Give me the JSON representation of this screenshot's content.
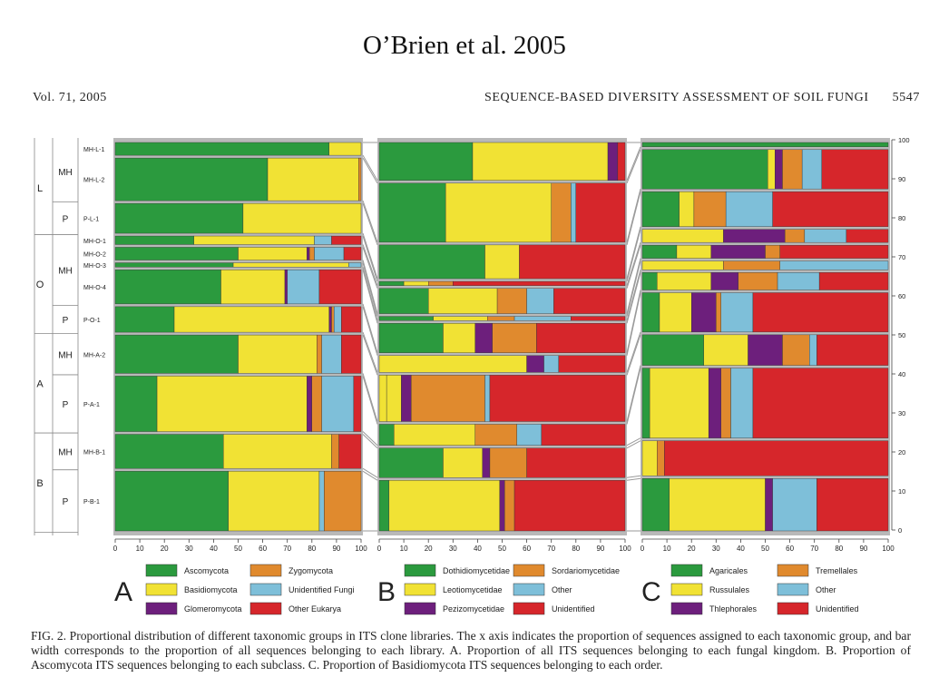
{
  "header": {
    "citation": "O’Brien et al. 2005",
    "volume": "Vol. 71, 2005",
    "running_title": "SEQUENCE-BASED DIVERSITY ASSESSMENT OF SOIL FUNGI",
    "page_number": "5547"
  },
  "caption": "FIG. 2. Proportional distribution of different taxonomic groups in ITS clone libraries. The x axis indicates the proportion of sequences assigned to each taxonomic group, and bar width corresponds to the proportion of all sequences belonging to each library. A. Proportion of all ITS sequences belonging to each fungal kingdom. B. Proportion of Ascomycota ITS sequences belonging to each subclass. C. Proportion of Basidiomycota ITS sequences belonging to each order.",
  "colors": {
    "green": "#2b9a3e",
    "yellow": "#f1e234",
    "purple": "#6d1f7c",
    "orange": "#e08a2e",
    "blue": "#7ebfd9",
    "red": "#d6262b"
  },
  "chart_data": [
    {
      "type": "bar",
      "panel": "A",
      "orientation": "horizontal-stacked",
      "xlim": [
        0,
        100
      ],
      "xticks": [
        0,
        10,
        20,
        30,
        40,
        50,
        60,
        70,
        80,
        90,
        100
      ],
      "legend": [
        {
          "label": "Ascomycota",
          "color": "green"
        },
        {
          "label": "Zygomycota",
          "color": "orange"
        },
        {
          "label": "Basidiomycota",
          "color": "yellow"
        },
        {
          "label": "Unidentified Fungi",
          "color": "blue"
        },
        {
          "label": "Glomeromycota",
          "color": "purple"
        },
        {
          "label": "Other Eukarya",
          "color": "red"
        }
      ],
      "bars": [
        {
          "label": "MH-L-1",
          "weight": 3,
          "segments": [
            [
              "green",
              87
            ],
            [
              "yellow",
              13
            ]
          ]
        },
        {
          "label": "MH-L-2",
          "weight": 10,
          "segments": [
            [
              "green",
              62
            ],
            [
              "yellow",
              37
            ],
            [
              "orange",
              1
            ]
          ]
        },
        {
          "label": "P-L-1",
          "weight": 7,
          "segments": [
            [
              "green",
              52
            ],
            [
              "yellow",
              48
            ]
          ]
        },
        {
          "label": "MH-O-1",
          "weight": 2,
          "segments": [
            [
              "green",
              32
            ],
            [
              "yellow",
              49
            ],
            [
              "blue",
              7
            ],
            [
              "red",
              12
            ]
          ]
        },
        {
          "label": "MH-O-2",
          "weight": 3,
          "segments": [
            [
              "green",
              50
            ],
            [
              "yellow",
              28
            ],
            [
              "purple",
              1
            ],
            [
              "orange",
              2
            ],
            [
              "blue",
              12
            ],
            [
              "red",
              7
            ]
          ]
        },
        {
          "label": "MH-O-3",
          "weight": 1,
          "segments": [
            [
              "green",
              48
            ],
            [
              "yellow",
              47
            ],
            [
              "blue",
              5
            ]
          ]
        },
        {
          "label": "MH-O-4",
          "weight": 8,
          "segments": [
            [
              "green",
              43
            ],
            [
              "yellow",
              26
            ],
            [
              "purple",
              1
            ],
            [
              "blue",
              13
            ],
            [
              "red",
              17
            ]
          ]
        },
        {
          "label": "P-O-1",
          "weight": 6,
          "segments": [
            [
              "green",
              24
            ],
            [
              "yellow",
              63
            ],
            [
              "purple",
              1
            ],
            [
              "orange",
              1
            ],
            [
              "blue",
              3
            ],
            [
              "red",
              8
            ]
          ]
        },
        {
          "label": "MH-A-2",
          "weight": 9,
          "segments": [
            [
              "green",
              50
            ],
            [
              "yellow",
              32
            ],
            [
              "orange",
              2
            ],
            [
              "blue",
              8
            ],
            [
              "red",
              8
            ]
          ]
        },
        {
          "label": "P-A-1",
          "weight": 13,
          "segments": [
            [
              "green",
              17
            ],
            [
              "yellow",
              61
            ],
            [
              "purple",
              2
            ],
            [
              "orange",
              4
            ],
            [
              "blue",
              13
            ],
            [
              "red",
              3
            ]
          ]
        },
        {
          "label": "MH-B-1",
          "weight": 8,
          "segments": [
            [
              "green",
              44
            ],
            [
              "yellow",
              44
            ],
            [
              "orange",
              3
            ],
            [
              "red",
              9
            ]
          ]
        },
        {
          "label": "P-B-1",
          "weight": 14,
          "segments": [
            [
              "green",
              46
            ],
            [
              "yellow",
              37
            ],
            [
              "blue",
              2
            ],
            [
              "orange",
              15
            ]
          ]
        }
      ]
    },
    {
      "type": "bar",
      "panel": "B",
      "orientation": "horizontal-stacked",
      "xlim": [
        0,
        100
      ],
      "xticks": [
        0,
        10,
        20,
        30,
        40,
        50,
        60,
        70,
        80,
        90,
        100
      ],
      "legend": [
        {
          "label": "Dothidiomycetidae",
          "color": "green"
        },
        {
          "label": "Sordariomycetidae",
          "color": "orange"
        },
        {
          "label": "Leotiomycetidae",
          "color": "yellow"
        },
        {
          "label": "Other",
          "color": "blue"
        },
        {
          "label": "Pezizomycetidae",
          "color": "purple"
        },
        {
          "label": "Unidentified",
          "color": "red"
        }
      ],
      "bars": [
        {
          "weight": 9,
          "segments": [
            [
              "green",
              38
            ],
            [
              "yellow",
              55
            ],
            [
              "purple",
              4
            ],
            [
              "red",
              3
            ]
          ]
        },
        {
          "weight": 14,
          "segments": [
            [
              "green",
              27
            ],
            [
              "yellow",
              43
            ],
            [
              "orange",
              8
            ],
            [
              "blue",
              2
            ],
            [
              "red",
              20
            ]
          ]
        },
        {
          "weight": 8,
          "segments": [
            [
              "green",
              43
            ],
            [
              "yellow",
              14
            ],
            [
              "red",
              43
            ]
          ]
        },
        {
          "weight": 1,
          "segments": [
            [
              "green",
              10
            ],
            [
              "yellow",
              10
            ],
            [
              "orange",
              10
            ],
            [
              "red",
              70
            ]
          ]
        },
        {
          "weight": 6,
          "segments": [
            [
              "green",
              20
            ],
            [
              "yellow",
              28
            ],
            [
              "orange",
              12
            ],
            [
              "blue",
              11
            ],
            [
              "red",
              29
            ]
          ]
        },
        {
          "weight": 1,
          "segments": [
            [
              "green",
              22
            ],
            [
              "yellow",
              22
            ],
            [
              "orange",
              11
            ],
            [
              "blue",
              23
            ],
            [
              "red",
              22
            ]
          ]
        },
        {
          "weight": 7,
          "segments": [
            [
              "green",
              26
            ],
            [
              "yellow",
              13
            ],
            [
              "purple",
              7
            ],
            [
              "orange",
              18
            ],
            [
              "red",
              36
            ]
          ]
        },
        {
          "weight": 4,
          "segments": [
            [
              "yellow",
              60
            ],
            [
              "purple",
              7
            ],
            [
              "blue",
              6
            ],
            [
              "red",
              27
            ]
          ]
        },
        {
          "weight": 11,
          "segments": [
            [
              "yellow",
              3
            ],
            [
              "yellow",
              6
            ],
            [
              "purple",
              4
            ],
            [
              "orange",
              30
            ],
            [
              "blue",
              2
            ],
            [
              "red",
              55
            ]
          ]
        },
        {
          "weight": 5,
          "segments": [
            [
              "green",
              6
            ],
            [
              "yellow",
              33
            ],
            [
              "orange",
              17
            ],
            [
              "blue",
              10
            ],
            [
              "red",
              34
            ]
          ]
        },
        {
          "weight": 7,
          "segments": [
            [
              "green",
              26
            ],
            [
              "yellow",
              16
            ],
            [
              "purple",
              3
            ],
            [
              "orange",
              15
            ],
            [
              "red",
              40
            ]
          ]
        },
        {
          "weight": 12,
          "segments": [
            [
              "green",
              4
            ],
            [
              "yellow",
              45
            ],
            [
              "purple",
              2
            ],
            [
              "orange",
              4
            ],
            [
              "red",
              45
            ]
          ]
        }
      ]
    },
    {
      "type": "bar",
      "panel": "C",
      "orientation": "horizontal-stacked",
      "xlim": [
        0,
        100
      ],
      "xticks": [
        0,
        10,
        20,
        30,
        40,
        50,
        60,
        70,
        80,
        90,
        100
      ],
      "yticks_right": [
        0,
        10,
        20,
        30,
        40,
        50,
        60,
        70,
        80,
        90,
        100
      ],
      "legend": [
        {
          "label": "Agaricales",
          "color": "green"
        },
        {
          "label": "Tremellales",
          "color": "orange"
        },
        {
          "label": "Russulales",
          "color": "yellow"
        },
        {
          "label": "Other",
          "color": "blue"
        },
        {
          "label": "Thlephorales",
          "color": "purple"
        },
        {
          "label": "Unidentified",
          "color": "red"
        }
      ],
      "bars": [
        {
          "weight": 1,
          "segments": [
            [
              "green",
              100
            ]
          ]
        },
        {
          "weight": 9,
          "segments": [
            [
              "green",
              51
            ],
            [
              "yellow",
              3
            ],
            [
              "purple",
              3
            ],
            [
              "orange",
              8
            ],
            [
              "blue",
              8
            ],
            [
              "red",
              27
            ]
          ]
        },
        {
          "weight": 8,
          "segments": [
            [
              "green",
              15
            ],
            [
              "yellow",
              6
            ],
            [
              "orange",
              13
            ],
            [
              "blue",
              19
            ],
            [
              "red",
              47
            ]
          ]
        },
        {
          "weight": 3,
          "segments": [
            [
              "yellow",
              33
            ],
            [
              "purple",
              25
            ],
            [
              "orange",
              8
            ],
            [
              "blue",
              17
            ],
            [
              "red",
              17
            ]
          ]
        },
        {
          "weight": 3,
          "segments": [
            [
              "green",
              14
            ],
            [
              "yellow",
              14
            ],
            [
              "purple",
              22
            ],
            [
              "orange",
              6
            ],
            [
              "red",
              44
            ]
          ]
        },
        {
          "weight": 2,
          "segments": [
            [
              "yellow",
              33
            ],
            [
              "orange",
              23
            ],
            [
              "blue",
              44
            ]
          ]
        },
        {
          "weight": 4,
          "segments": [
            [
              "green",
              6
            ],
            [
              "yellow",
              22
            ],
            [
              "purple",
              11
            ],
            [
              "orange",
              16
            ],
            [
              "blue",
              17
            ],
            [
              "red",
              28
            ]
          ]
        },
        {
          "weight": 9,
          "segments": [
            [
              "green",
              7
            ],
            [
              "yellow",
              13
            ],
            [
              "purple",
              10
            ],
            [
              "orange",
              2
            ],
            [
              "blue",
              13
            ],
            [
              "red",
              55
            ]
          ]
        },
        {
          "weight": 7,
          "segments": [
            [
              "green",
              25
            ],
            [
              "yellow",
              18
            ],
            [
              "purple",
              14
            ],
            [
              "orange",
              11
            ],
            [
              "blue",
              3
            ],
            [
              "red",
              29
            ]
          ]
        },
        {
          "weight": 16,
          "segments": [
            [
              "green",
              3
            ],
            [
              "yellow",
              24
            ],
            [
              "purple",
              5
            ],
            [
              "orange",
              4
            ],
            [
              "blue",
              9
            ],
            [
              "red",
              55
            ]
          ]
        },
        {
          "weight": 8,
          "segments": [
            [
              "yellow",
              6
            ],
            [
              "orange",
              3
            ],
            [
              "red",
              91
            ]
          ]
        },
        {
          "weight": 12,
          "segments": [
            [
              "green",
              11
            ],
            [
              "yellow",
              39
            ],
            [
              "purple",
              3
            ],
            [
              "blue",
              18
            ],
            [
              "red",
              29
            ]
          ]
        }
      ]
    }
  ],
  "rows": {
    "sites": [
      "L",
      "O",
      "A",
      "B"
    ],
    "habitats": [
      "MH",
      "P",
      "MH",
      "P",
      "MH",
      "P",
      "MH",
      "P"
    ]
  }
}
